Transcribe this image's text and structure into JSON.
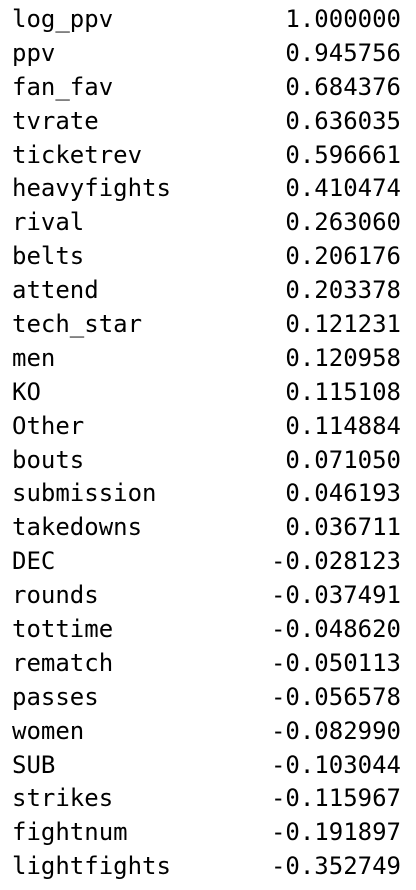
{
  "series_output": {
    "rows": [
      {
        "name": "log_ppv",
        "value": "1.000000"
      },
      {
        "name": "ppv",
        "value": "0.945756"
      },
      {
        "name": "fan_fav",
        "value": "0.684376"
      },
      {
        "name": "tvrate",
        "value": "0.636035"
      },
      {
        "name": "ticketrev",
        "value": "0.596661"
      },
      {
        "name": "heavyfights",
        "value": "0.410474"
      },
      {
        "name": "rival",
        "value": "0.263060"
      },
      {
        "name": "belts",
        "value": "0.206176"
      },
      {
        "name": "attend",
        "value": "0.203378"
      },
      {
        "name": "tech_star",
        "value": "0.121231"
      },
      {
        "name": "men",
        "value": "0.120958"
      },
      {
        "name": "KO",
        "value": "0.115108"
      },
      {
        "name": "Other",
        "value": "0.114884"
      },
      {
        "name": "bouts",
        "value": "0.071050"
      },
      {
        "name": "submission",
        "value": "0.046193"
      },
      {
        "name": "takedowns",
        "value": "0.036711"
      },
      {
        "name": "DEC",
        "value": "-0.028123"
      },
      {
        "name": "rounds",
        "value": "-0.037491"
      },
      {
        "name": "tottime",
        "value": "-0.048620"
      },
      {
        "name": "rematch",
        "value": "-0.050113"
      },
      {
        "name": "passes",
        "value": "-0.056578"
      },
      {
        "name": "women",
        "value": "-0.082990"
      },
      {
        "name": "SUB",
        "value": "-0.103044"
      },
      {
        "name": "strikes",
        "value": "-0.115967"
      },
      {
        "name": "fightnum",
        "value": "-0.191897"
      },
      {
        "name": "lightfights",
        "value": "-0.352749"
      }
    ]
  }
}
